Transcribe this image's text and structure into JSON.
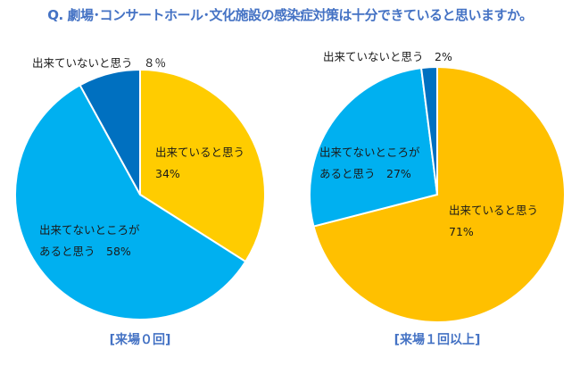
{
  "title": "Q. 劇場･コンサートホール･文化施設の感染症対策は十分できていると思いますか。",
  "chart_data": [
    {
      "type": "pie",
      "subtitle": "[来場０回]",
      "slices": [
        {
          "label_lines": [
            "出来ていると思う",
            "34%"
          ],
          "value": 34,
          "color": "#FFCC00"
        },
        {
          "label_lines": [
            "出来てないところが",
            "あると思う　58%"
          ],
          "value": 58,
          "color": "#00B0F0"
        },
        {
          "label_lines": [
            "出来ていないと思う　８％"
          ],
          "value": 8,
          "color": "#0070C0"
        }
      ]
    },
    {
      "type": "pie",
      "subtitle": "[来場１回以上]",
      "slices": [
        {
          "label_lines": [
            "出来ていると思う",
            "71%"
          ],
          "value": 71,
          "color": "#FFC000"
        },
        {
          "label_lines": [
            "出来てないところが",
            "あると思う　27%"
          ],
          "value": 27,
          "color": "#00B0F0"
        },
        {
          "label_lines": [
            "出来ていないと思う　2%"
          ],
          "value": 2,
          "color": "#0070C0"
        }
      ]
    }
  ]
}
